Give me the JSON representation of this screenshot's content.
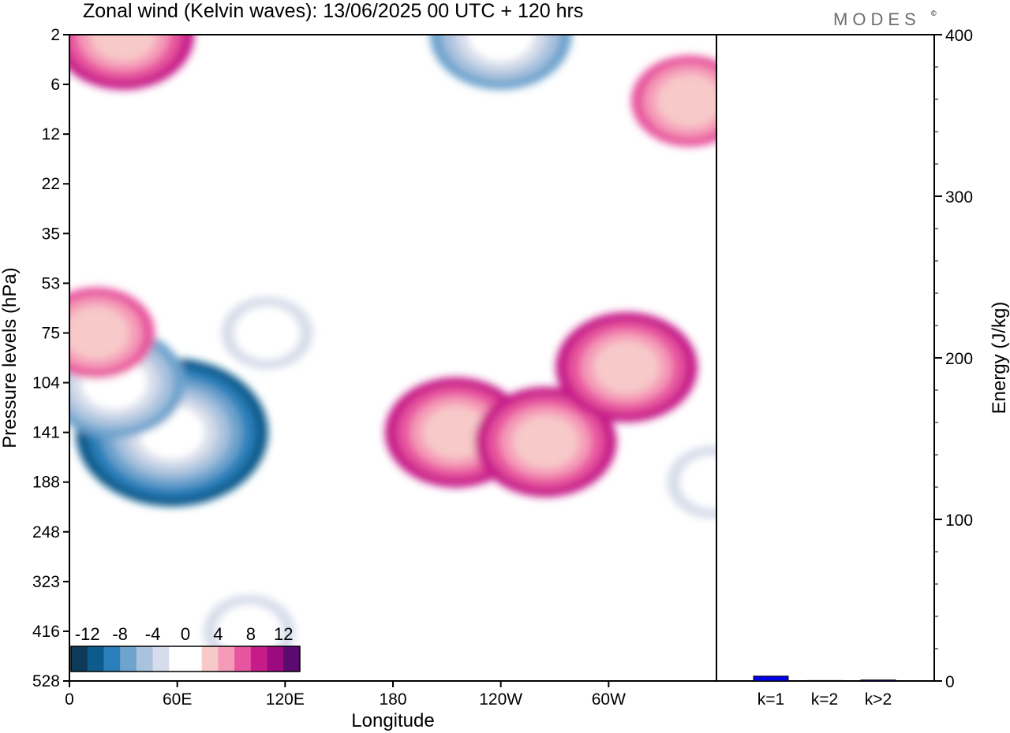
{
  "brand": "MODES",
  "brand_mark": "©",
  "chart_data": [
    {
      "type": "heatmap",
      "title": "Zonal wind (Kelvin waves):  13/06/2025  00 UTC  + 120 hrs",
      "xlabel": "Longitude",
      "ylabel": "Pressure levels (hPa)",
      "x_ticks": [
        "0",
        "60E",
        "120E",
        "180",
        "120W",
        "60W"
      ],
      "y_ticks": [
        "2",
        "6",
        "12",
        "22",
        "35",
        "53",
        "75",
        "104",
        "141",
        "188",
        "248",
        "323",
        "416",
        "528"
      ],
      "colorbar": {
        "tick_labels": [
          "-12",
          "-8",
          "-4",
          "0",
          "4",
          "8",
          "12"
        ],
        "colors": [
          "#0c3a58",
          "#0d5a8c",
          "#2a7fba",
          "#6ea3cd",
          "#a9c2de",
          "#d6dcea",
          "#ffffff",
          "#ffffff",
          "#f7c9c9",
          "#f59bb8",
          "#e8559f",
          "#c71b89",
          "#9b0a7f",
          "#5b0a6e"
        ]
      },
      "features": [
        {
          "kind": "easterly",
          "level": -12,
          "lon": 57,
          "p": 141
        },
        {
          "kind": "easterly",
          "level": -8,
          "lon": 25,
          "p": 104
        },
        {
          "kind": "easterly",
          "level": -8,
          "lon": 240,
          "p": 2
        },
        {
          "kind": "easterly",
          "level": -4,
          "lon": 110,
          "p": 75
        },
        {
          "kind": "easterly",
          "level": -4,
          "lon": 100,
          "p": 416
        },
        {
          "kind": "easterly",
          "level": -4,
          "lon": 358,
          "p": 188
        },
        {
          "kind": "westerly",
          "level": 8,
          "lon": 215,
          "p": 141
        },
        {
          "kind": "westerly",
          "level": 8,
          "lon": 265,
          "p": 150
        },
        {
          "kind": "westerly",
          "level": 8,
          "lon": 310,
          "p": 95
        },
        {
          "kind": "westerly",
          "level": 6,
          "lon": 15,
          "p": 75
        },
        {
          "kind": "westerly",
          "level": 6,
          "lon": 345,
          "p": 8
        },
        {
          "kind": "westerly",
          "level": 8,
          "lon": 30,
          "p": 2
        }
      ]
    },
    {
      "type": "bar",
      "categories": [
        "k=1",
        "k=2",
        "k>2"
      ],
      "values": [
        3,
        0.3,
        0.6
      ],
      "ylabel": "Energy (J/kg)",
      "ylim": [
        0,
        400
      ],
      "y_ticks": [
        "0",
        "100",
        "200",
        "300",
        "400"
      ],
      "bar_color": "#0000e6"
    }
  ]
}
